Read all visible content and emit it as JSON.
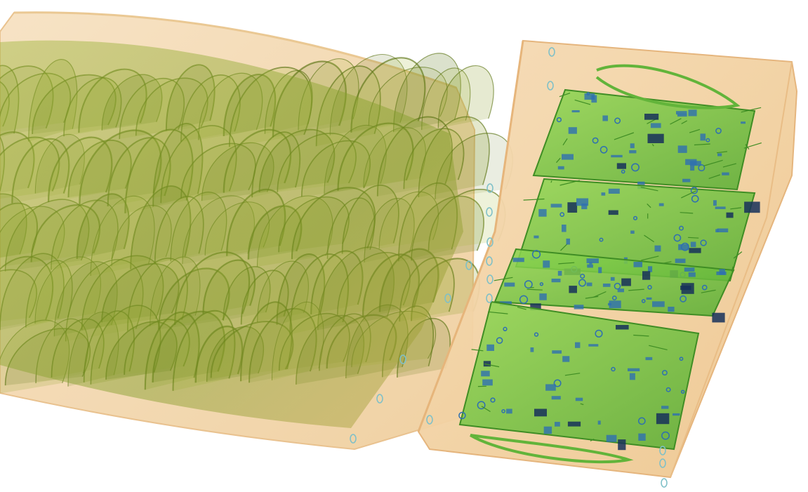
{
  "scene": {
    "kind": "xray-volume-render",
    "objects": [
      {
        "name": "left-container",
        "contents": "wavy-sheets",
        "material": "organic"
      },
      {
        "name": "right-container",
        "contents": "circuit-boards",
        "material": "electronics"
      }
    ]
  },
  "colors": {
    "background": "#ffffff",
    "container_fill": "#f3d7ad",
    "container_edge": "#e9b980",
    "container_clip": "#7fc0c8",
    "organic_light": "#a7b83a",
    "organic_mid": "#8a9d25",
    "organic_dark": "#5c7516",
    "pcb_light": "#86d14a",
    "pcb_mid": "#5fb534",
    "pcb_dark": "#3f8d24",
    "component_blue": "#2e6fb2",
    "component_dark": "#16305a",
    "cable_green": "#62b43a"
  }
}
